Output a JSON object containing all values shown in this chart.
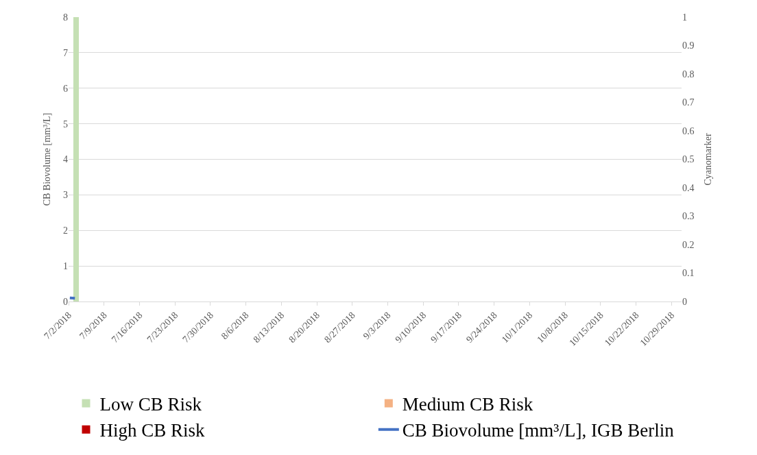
{
  "chart_data": {
    "type": "bar",
    "ylabel": "CB Biovolume [mm³/L]",
    "y2label": "Cyanomarker",
    "xlim": [
      "2018-07-02",
      "2018-10-31"
    ],
    "xticks": [
      {
        "value": "2018-07-02",
        "label": "7/2/2018"
      },
      {
        "value": "2018-07-09",
        "label": "7/9/2018"
      },
      {
        "value": "2018-07-16",
        "label": "7/16/2018"
      },
      {
        "value": "2018-07-23",
        "label": "7/23/2018"
      },
      {
        "value": "2018-07-30",
        "label": "7/30/2018"
      },
      {
        "value": "2018-08-06",
        "label": "8/6/2018"
      },
      {
        "value": "2018-08-13",
        "label": "8/13/2018"
      },
      {
        "value": "2018-08-20",
        "label": "8/20/2018"
      },
      {
        "value": "2018-08-27",
        "label": "8/27/2018"
      },
      {
        "value": "2018-09-03",
        "label": "9/3/2018"
      },
      {
        "value": "2018-09-10",
        "label": "9/10/2018"
      },
      {
        "value": "2018-09-17",
        "label": "9/17/2018"
      },
      {
        "value": "2018-09-24",
        "label": "9/24/2018"
      },
      {
        "value": "2018-10-01",
        "label": "10/1/2018"
      },
      {
        "value": "2018-10-08",
        "label": "10/8/2018"
      },
      {
        "value": "2018-10-15",
        "label": "10/15/2018"
      },
      {
        "value": "2018-10-22",
        "label": "10/22/2018"
      },
      {
        "value": "2018-10-29",
        "label": "10/29/2018"
      }
    ],
    "ylim": [
      0,
      8
    ],
    "yticks": [
      0,
      1,
      2,
      3,
      4,
      5,
      6,
      7,
      8
    ],
    "y2lim": [
      0,
      1
    ],
    "y2ticks": [
      0,
      0.1,
      0.2,
      0.3,
      0.4,
      0.5,
      0.6,
      0.7,
      0.8,
      0.9,
      1
    ],
    "grid": "y",
    "legend": "bottom",
    "series": [
      {
        "name": "Low CB Risk",
        "axis": "y2",
        "color": "#c5e0b4",
        "x": [
          "2018-07-03T12:00"
        ],
        "values": [
          1
        ]
      },
      {
        "name": "Medium CB Risk",
        "axis": "y2",
        "color": "#f4b183"
      },
      {
        "name": "High CB Risk",
        "axis": "y2",
        "color": "#c00000"
      },
      {
        "name": "CB Biovolume [mm³/L], IGB Berlin",
        "type": "line",
        "color": "#4472c4",
        "x": [
          "2018-07-02T06:00",
          "2018-07-03T06:00"
        ],
        "values": [
          0.1,
          0.09
        ]
      }
    ]
  }
}
